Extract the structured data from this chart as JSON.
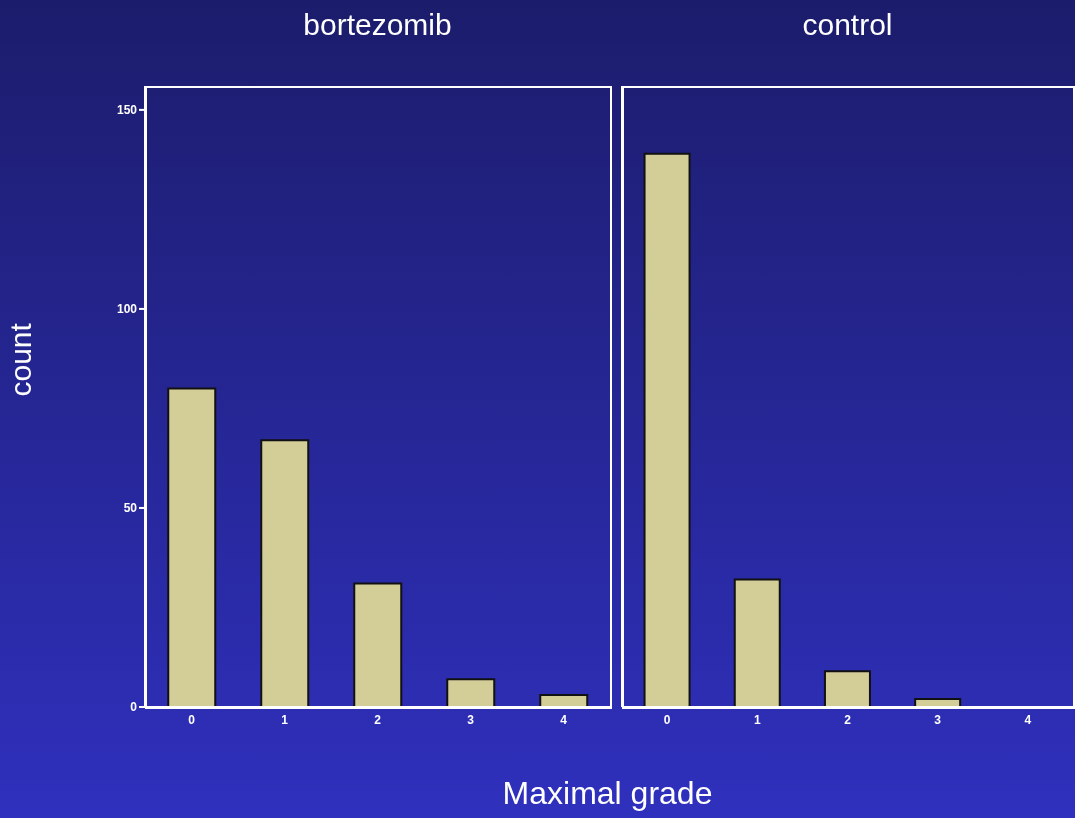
{
  "chart_data": [
    {
      "type": "bar",
      "title": "bortezomib",
      "ylabel": "count",
      "xlabel": "Maximal grade",
      "categories": [
        "0",
        "1",
        "2",
        "3",
        "4"
      ],
      "values": [
        80,
        67,
        31,
        7,
        3
      ],
      "color": "#d3cd98",
      "ylim": [
        0,
        156
      ],
      "yticks": [
        0,
        50,
        100,
        150
      ],
      "grid": false,
      "legend": false
    },
    {
      "type": "bar",
      "title": "control",
      "categories": [
        "0",
        "1",
        "2",
        "3",
        "4"
      ],
      "values": [
        139,
        32,
        9,
        2,
        0
      ],
      "color": "#d3cd98",
      "ylim": [
        0,
        156
      ],
      "yticks": [
        0,
        50,
        100,
        150
      ],
      "grid": false,
      "legend": false,
      "tick_labels": "x"
    }
  ]
}
